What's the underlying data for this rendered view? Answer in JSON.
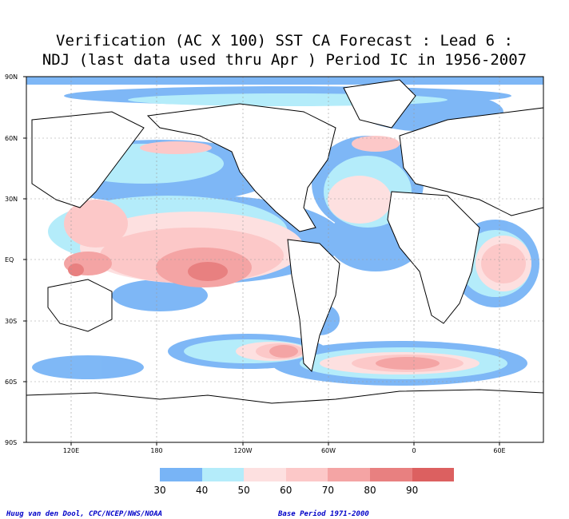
{
  "title": {
    "line1": "Verification (AC X 100) SST CA Forecast : Lead 6 :",
    "line2": "NDJ (last data used thru Apr ) Period IC in 1956-2007"
  },
  "lat_labels": [
    "90N",
    "60N",
    "30N",
    "EQ",
    "30S",
    "60S",
    "90S"
  ],
  "lon_labels": [
    "120E",
    "180",
    "120W",
    "60W",
    "0",
    "60E"
  ],
  "legend": {
    "labels": [
      "30",
      "40",
      "50",
      "60",
      "70",
      "80",
      "90"
    ],
    "colors": [
      "#78b4f6",
      "#b4ecfa",
      "#fde0e0",
      "#fcc8c8",
      "#f4a4a4",
      "#e88080",
      "#dc6060"
    ]
  },
  "credits": {
    "left": "Huug van den Dool, CPC/NCEP/NWS/NOAA",
    "right": "Base Period 1971-2000"
  }
}
